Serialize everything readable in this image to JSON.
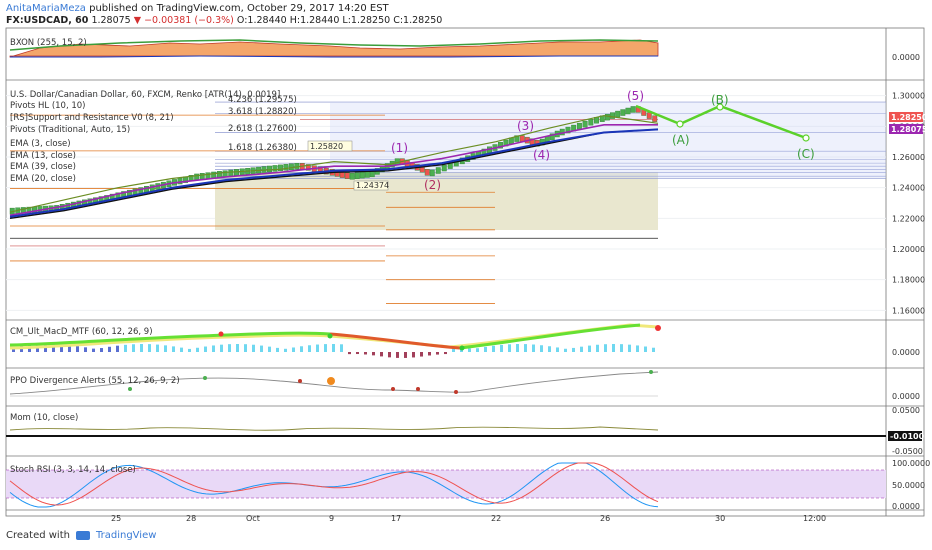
{
  "header": {
    "user": "AnitaMariaMeza",
    "published": "published on TradingView.com, October 29, 2017 14:20 EST",
    "symbol": "FX:USDCAD, 60",
    "price": "1.28075",
    "change": "▼ −0.00381 (−0.3%)",
    "open": "O:1.28440",
    "high": "H:1.28440",
    "low": "L:1.28250",
    "close": "C:1.28250"
  },
  "colors": {
    "bull": "#4caf50",
    "bear": "#ef5350",
    "ema3": "#6b8e23",
    "ema13": "#9c27b0",
    "ema39": "#111111",
    "ema20": "#1a35b8",
    "elliott": "#5bd12a",
    "wave": "#9c27b0",
    "pivot": "#e07b2a",
    "fib": "#7b88c9"
  },
  "legend": {
    "bxon": "BXON (255, 15, 2)",
    "title": "U.S. Dollar/Canadian Dollar, 60, FXCM, Renko [ATR(14), 0.0019]",
    "items": [
      "Pivots HL (10, 10)",
      "[RS]Support and Resistance V0 (8, 21)",
      "Pivots (Traditional, Auto, 15)",
      "EMA (3, close)",
      "EMA (13, close)",
      "EMA (39, close)",
      "EMA (20, close)"
    ],
    "macd": "CM_Ult_MacD_MTF (60, 12, 26, 9)",
    "ppo": "PPO Divergence Alerts (55, 12, 26, 9, 2)",
    "mom": "Mom (10, close)",
    "stoch": "Stoch RSI (3, 3, 14, 14, close)"
  },
  "fib_labels": [
    "4.236 (1.29575)",
    "3.618 (1.28820)",
    "2.618 (1.27600)",
    "1.618 (1.26380)"
  ],
  "pivot_tags": [
    "1.25820",
    "1.24374"
  ],
  "price_tags": [
    "1.28250",
    "1.28075"
  ],
  "mom_tag": "-0.0100",
  "x_labels": [
    "25",
    "28",
    "Oct",
    "9",
    "17",
    "22",
    "26",
    "30",
    "12:00"
  ],
  "main_ticks": [
    "1.30000",
    "1.28000",
    "1.26000",
    "1.24000",
    "1.22000",
    "1.20000",
    "1.18000",
    "1.16000"
  ],
  "bxon_ticks": [
    "0.0000"
  ],
  "macd_ticks": [
    "0.0000"
  ],
  "ppo_ticks": [
    "0.0000"
  ],
  "mom_ticks": [
    "0.0500",
    "-0.0500"
  ],
  "stoch_ticks": [
    "100.0000",
    "50.0000",
    "0.0000"
  ],
  "chart_data": {
    "type": "line",
    "series": [
      {
        "name": "EMA (3, close)",
        "values": [
          1.224,
          1.232,
          1.24,
          1.246,
          1.25,
          1.252,
          1.257,
          1.255,
          1.263,
          1.27,
          1.279,
          1.287,
          1.282
        ]
      },
      {
        "name": "EMA (13, close)",
        "values": [
          1.222,
          1.228,
          1.236,
          1.243,
          1.247,
          1.25,
          1.254,
          1.254,
          1.259,
          1.266,
          1.274,
          1.281,
          1.281
        ]
      },
      {
        "name": "EMA (39, close)",
        "values": [
          1.22,
          1.225,
          1.232,
          1.239,
          1.244,
          1.247,
          1.25,
          1.251,
          1.255,
          1.262,
          1.269,
          1.276,
          1.278
        ]
      },
      {
        "name": "EMA (20, close)",
        "values": [
          1.221,
          1.226,
          1.233,
          1.24,
          1.245,
          1.248,
          1.251,
          1.252,
          1.256,
          1.263,
          1.27,
          1.276,
          1.278
        ]
      }
    ],
    "waves": [
      "(1)",
      "(2)",
      "(3)",
      "(4)",
      "(5)",
      "(A)",
      "(B)",
      "(C)"
    ],
    "ylim": [
      1.155,
      1.305
    ]
  },
  "footer": {
    "created": "Created with",
    "brand": "TradingView"
  }
}
